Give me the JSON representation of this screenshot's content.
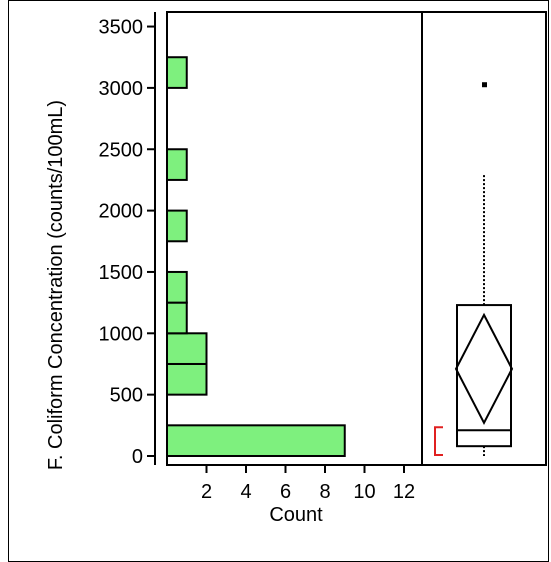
{
  "chart_data": [
    {
      "type": "bar",
      "orientation": "horizontal",
      "xlabel": "Count",
      "ylabel": "F. Coliform Concentration (counts/100mL)",
      "ylim": [
        -150,
        3600
      ],
      "xlim": [
        0,
        13
      ],
      "yticks": [
        0,
        500,
        1000,
        1500,
        2000,
        2500,
        3000,
        3500
      ],
      "xticks": [
        2,
        4,
        6,
        8,
        10,
        12
      ],
      "bar_color": "#7ef07e",
      "bins": [
        {
          "low": 0,
          "high": 250,
          "count": 9
        },
        {
          "low": 500,
          "high": 750,
          "count": 2
        },
        {
          "low": 750,
          "high": 1000,
          "count": 2
        },
        {
          "low": 1000,
          "high": 1250,
          "count": 1
        },
        {
          "low": 1250,
          "high": 1500,
          "count": 1
        },
        {
          "low": 1750,
          "high": 2000,
          "count": 1
        },
        {
          "low": 2250,
          "high": 2500,
          "count": 1
        },
        {
          "low": 3000,
          "high": 3250,
          "count": 1
        }
      ]
    },
    {
      "type": "box",
      "whisker_low": 0,
      "q1": 80,
      "median": 210,
      "q3": 1230,
      "whisker_high": 2300,
      "outliers": [
        3030
      ],
      "mean": 710,
      "mean_ci": [
        270,
        1150
      ],
      "shortest_half": [
        0,
        210
      ],
      "shortest_half_color": "#e02020"
    }
  ]
}
